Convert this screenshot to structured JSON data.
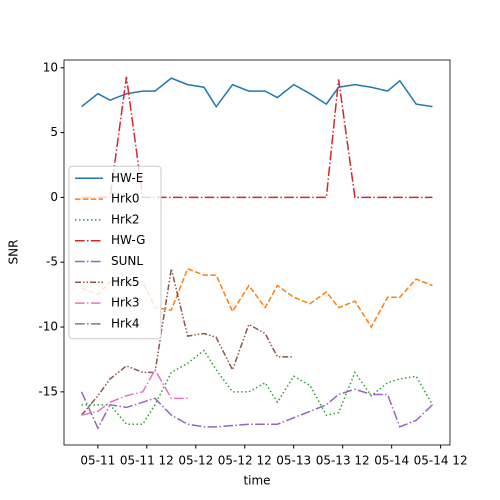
{
  "chart_data": {
    "type": "line",
    "xlabel": "time",
    "ylabel": "SNR",
    "x": [
      -4,
      0,
      3,
      7,
      11,
      14,
      18,
      22,
      26,
      29,
      33,
      37,
      41,
      44,
      48,
      52,
      56,
      59,
      63,
      67,
      71,
      74,
      78,
      82
    ],
    "xlim": [
      -8.3,
      86.3
    ],
    "xticks": [
      {
        "value": 0,
        "label": "05-11"
      },
      {
        "value": 12,
        "label": "05-11 12"
      },
      {
        "value": 24,
        "label": "05-12"
      },
      {
        "value": 36,
        "label": "05-12 12"
      },
      {
        "value": 48,
        "label": "05-13"
      },
      {
        "value": 60,
        "label": "05-13 12"
      },
      {
        "value": 72,
        "label": "05-14"
      },
      {
        "value": 84,
        "label": "05-14 12"
      }
    ],
    "ylim": [
      -19.1,
      10.6
    ],
    "yticks": [
      -15,
      -10,
      -5,
      0,
      5,
      10
    ],
    "grid": false,
    "legend": "center left",
    "series": [
      {
        "name": "HW-E",
        "color": "#1f77b4",
        "linestyle": "solid",
        "values": [
          7,
          8,
          7.5,
          8,
          8.2,
          8.2,
          9.2,
          8.7,
          8.5,
          7,
          8.7,
          8.2,
          8.2,
          7.7,
          8.7,
          8,
          7.2,
          8.5,
          8.7,
          8.5,
          8.2,
          9,
          7.2,
          7
        ]
      },
      {
        "name": "Hrk0",
        "color": "#ff7f0e",
        "linestyle": "dashed",
        "values": [
          -7,
          -7.5,
          -6.5,
          -6.5,
          -6.5,
          -8.5,
          -8.7,
          -5.5,
          -6,
          -6,
          -8.8,
          -6.8,
          -8.5,
          -6.8,
          -7.7,
          -8.2,
          -7.3,
          -8.5,
          -8,
          -10,
          -7.7,
          -7.7,
          -6.3,
          -6.8
        ]
      },
      {
        "name": "Hrk2",
        "color": "#2ca02c",
        "linestyle": "dotted",
        "values": [
          -16,
          -16,
          -16,
          -17.5,
          -17.5,
          -16,
          -13.5,
          -12.8,
          -11.8,
          -13.3,
          -15,
          -15,
          -14.3,
          -15.8,
          -13.8,
          -14.5,
          -16.8,
          -16.6,
          -13.5,
          -15.3,
          -14.3,
          -14,
          -13.8,
          -16
        ]
      },
      {
        "name": "HW-G",
        "color": "#d62728",
        "linestyle": "dashdot",
        "values": [
          0,
          0,
          0,
          9.3,
          0,
          0,
          0,
          0,
          0,
          0,
          0,
          0,
          0,
          0,
          0,
          0,
          0,
          9.1,
          0,
          0,
          0,
          0,
          0,
          0
        ]
      },
      {
        "name": "SUNL",
        "color": "#9467bd",
        "linestyle": "dashdot",
        "values": [
          -15,
          -17.8,
          -16,
          -16.2,
          -15.8,
          -15.5,
          -16.8,
          -17.5,
          -17.7,
          -17.7,
          -17.6,
          -17.5,
          -17.5,
          -17.5,
          -17,
          -16.5,
          -16,
          -15.2,
          -14.8,
          -15.2,
          -15.2,
          -17.7,
          -17.2,
          -16
        ]
      },
      {
        "name": "Hrk5",
        "color": "#8c564b",
        "linestyle": "dashdotdot",
        "values": [
          -16.8,
          -15.3,
          -14,
          -13,
          -13.5,
          -13.5,
          -5.5,
          -10.7,
          -10.5,
          -10.8,
          -13.3,
          -9.8,
          -10.5,
          -12.3,
          -12.3,
          null,
          null,
          null,
          null,
          null,
          null,
          null,
          null,
          null
        ]
      },
      {
        "name": "Hrk3",
        "color": "#e377c2",
        "linestyle": "dashdot",
        "values": [
          -16.8,
          -16.5,
          -15.8,
          -15.3,
          -15,
          -13.3,
          -15.5,
          -15.5,
          null,
          null,
          null,
          null,
          null,
          null,
          null,
          null,
          null,
          null,
          null,
          null,
          null,
          null,
          null,
          null
        ]
      },
      {
        "name": "Hrk4",
        "color": "#7f7f7f",
        "linestyle": "dashdot",
        "values": [
          null,
          null,
          null,
          null,
          null,
          null,
          null,
          null,
          null,
          null,
          null,
          null,
          null,
          null,
          null,
          null,
          null,
          null,
          null,
          null,
          null,
          null,
          null,
          null
        ]
      }
    ]
  }
}
